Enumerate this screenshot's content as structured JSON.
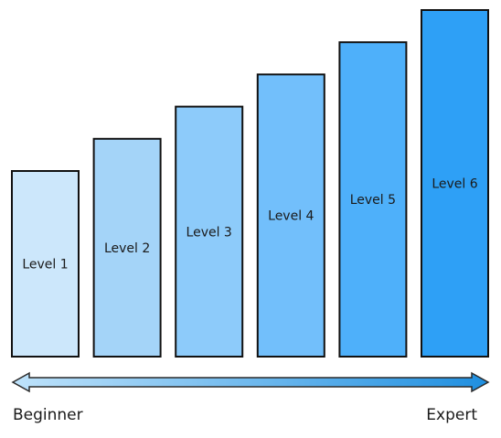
{
  "diagram": {
    "levels": [
      {
        "label": "Level 1",
        "value": 1,
        "color": "#cce7fb"
      },
      {
        "label": "Level 2",
        "value": 2,
        "color": "#a4d4f8"
      },
      {
        "label": "Level 3",
        "value": 3,
        "color": "#8dcbfa"
      },
      {
        "label": "Level 4",
        "value": 4,
        "color": "#72bffb"
      },
      {
        "label": "Level 5",
        "value": 5,
        "color": "#4eb0fa"
      },
      {
        "label": "Level 6",
        "value": 6,
        "color": "#2ea0f6"
      }
    ],
    "arrow": {
      "gradient_start": "#bfe3fb",
      "gradient_end": "#1f8fe0"
    },
    "scale": {
      "start_label": "Beginner",
      "end_label": "Expert"
    }
  }
}
